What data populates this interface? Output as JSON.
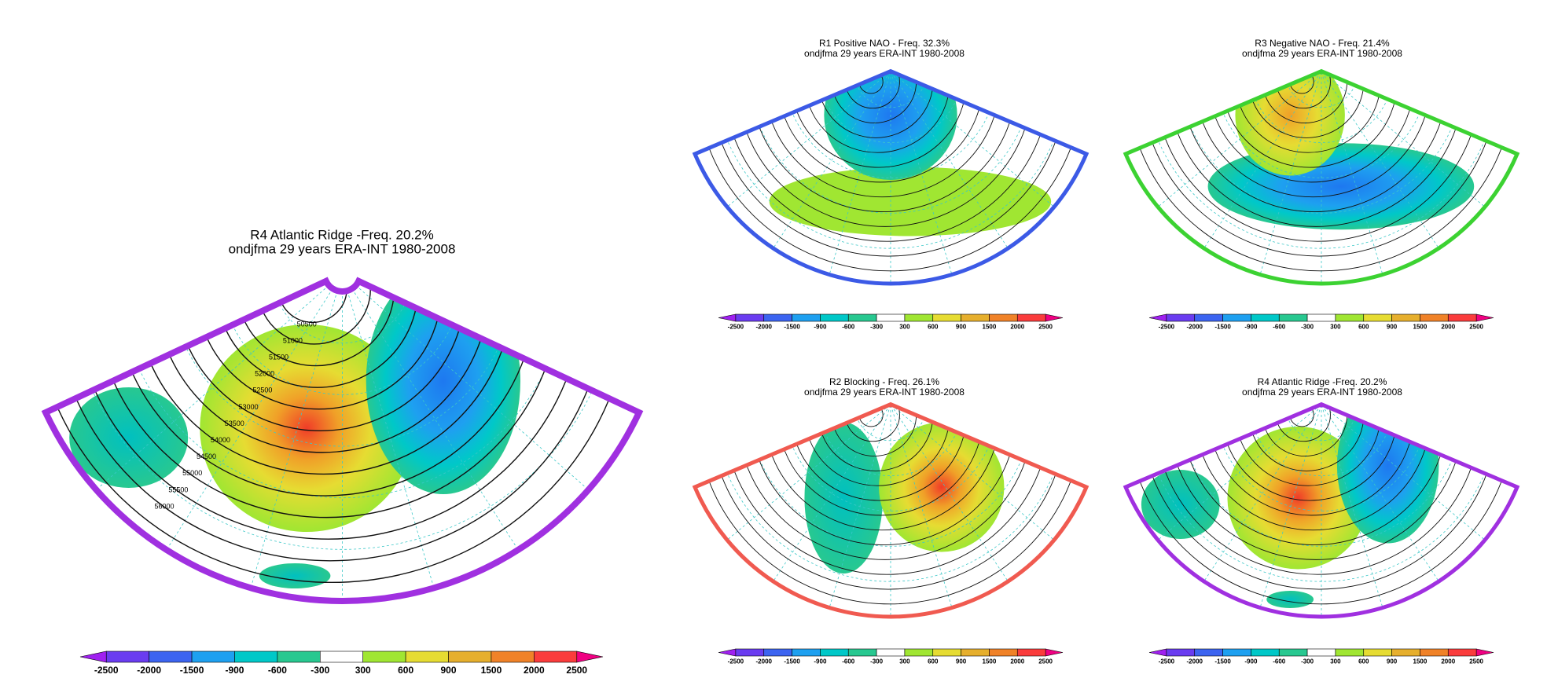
{
  "panels": [
    {
      "title": "R4 Atlantic Ridge -Freq. 20.2%",
      "subtitle": "ondjfma 29 years ERA-INT 1980-2008",
      "border_color": "#a030e0",
      "contour_labels": [
        "50500",
        "51000",
        "51500",
        "52000",
        "52500",
        "53000",
        "53500",
        "54000",
        "54500",
        "55000",
        "55500",
        "56000"
      ]
    },
    {
      "title": "R1 Positive NAO - Freq. 32.3%",
      "subtitle": "ondjfma 29 years ERA-INT 1980-2008",
      "border_color": "#3c5ae6"
    },
    {
      "title": "R3 Negative NAO - Freq. 21.4%",
      "subtitle": "ondjfma 29 years ERA-INT 1980-2008",
      "border_color": "#3cd232"
    },
    {
      "title": "R2 Blocking - Freq. 26.1%",
      "subtitle": "ondjfma 29 years ERA-INT 1980-2008",
      "border_color": "#f05a50"
    },
    {
      "title": "R4 Atlantic Ridge -Freq. 20.2%",
      "subtitle": "ondjfma 29 years ERA-INT 1980-2008",
      "border_color": "#a030e0"
    }
  ],
  "colorbar": {
    "labels": [
      "-2500",
      "-2000",
      "-1500",
      "-900",
      "-600",
      "-300",
      "300",
      "600",
      "900",
      "1500",
      "2000",
      "2500"
    ],
    "colors": [
      "#a020f0",
      "#6a3cf0",
      "#3c64f0",
      "#1ea0f0",
      "#00c8c8",
      "#28c890",
      "#ffffff",
      "#a0e632",
      "#e6dc32",
      "#e6af2d",
      "#f08228",
      "#fa3c3c",
      "#f00082"
    ]
  }
}
